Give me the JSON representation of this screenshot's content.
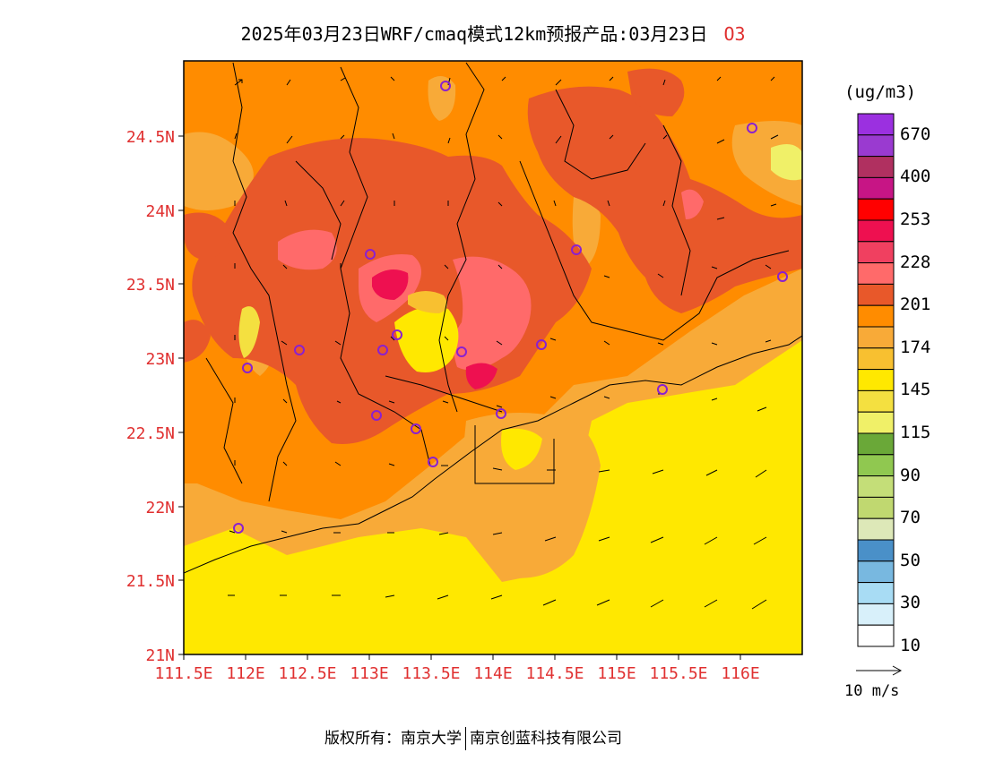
{
  "title": {
    "main": "2025年03月23日WRF/cmaq模式12km预报产品:03月23日",
    "species": "O3"
  },
  "axes": {
    "y_ticks": [
      "21N",
      "21.5N",
      "22N",
      "22.5N",
      "23N",
      "23.5N",
      "24N",
      "24.5N"
    ],
    "x_ticks": [
      "111.5E",
      "112E",
      "112.5E",
      "113E",
      "113.5E",
      "114E",
      "114.5E",
      "115E",
      "115.5E",
      "116E"
    ],
    "lat_range": [
      21,
      25
    ],
    "lon_range": [
      111.5,
      116.5
    ],
    "tick_color": "#e03030"
  },
  "colorbar": {
    "unit": "(ug/m3)",
    "labels": [
      "670",
      "400",
      "253",
      "228",
      "201",
      "174",
      "145",
      "115",
      "90",
      "70",
      "50",
      "30",
      "10"
    ],
    "colors_top_to_bottom": [
      "#9b30e0",
      "#9a3ad0",
      "#b03060",
      "#c71585",
      "#ff0000",
      "#ee1050",
      "#f04060",
      "#ff6a6a",
      "#e8582a",
      "#ff8c00",
      "#f8aa38",
      "#f8c030",
      "#ffe800",
      "#f4e040",
      "#f0f068",
      "#6aa838",
      "#90c850",
      "#c4de78",
      "#c0d870",
      "#dde8b8",
      "#4a90c8",
      "#78b8e0",
      "#a8dcf4",
      "#d8f0fa",
      "#ffffff"
    ]
  },
  "wind": {
    "legend_label": "10 m/s"
  },
  "stations": "purple circle markers",
  "footer": {
    "left": "版权所有：南京大学",
    "right": "南京创蓝科技有限公司"
  }
}
